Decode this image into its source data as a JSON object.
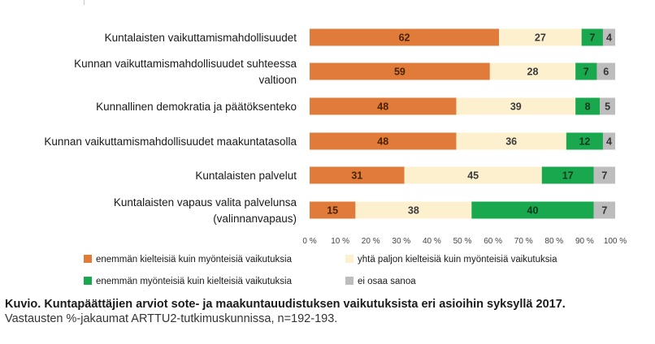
{
  "chart_data": {
    "type": "bar",
    "orientation": "horizontal",
    "stacked": "percent",
    "categories": [
      [
        "Kuntalaisten vaikuttamismahdollisuudet"
      ],
      [
        "Kunnan vaikuttamismahdollisuudet suhteessa",
        "valtioon"
      ],
      [
        "Kunnallinen demokratia ja päätöksenteko"
      ],
      [
        "Kunnan vaikuttamismahdollisuudet maakuntatasolla"
      ],
      [
        "Kuntalaisten palvelut"
      ],
      [
        "Kuntalaisten vapaus valita palvelunsa",
        "(valinnanvapaus)"
      ]
    ],
    "series": [
      {
        "name": "enemmän kielteisiä kuin myönteisiä vaikutuksia",
        "color": "#e07b39",
        "label_color": "#4a2200",
        "values": [
          62,
          59,
          48,
          48,
          31,
          15
        ]
      },
      {
        "name": "yhtä paljon kielteisiä kuin myönteisiä vaikutuksia",
        "color": "#fdf0cf",
        "label_color": "#3a3a3a",
        "values": [
          27,
          28,
          39,
          36,
          45,
          38
        ]
      },
      {
        "name": "enemmän myönteisiä kuin kielteisiä vaikutuksia",
        "color": "#1aa84f",
        "label_color": "#0d3a1c",
        "values": [
          7,
          7,
          8,
          12,
          17,
          40
        ]
      },
      {
        "name": "ei osaa sanoa",
        "color": "#bdbdbd",
        "label_color": "#333333",
        "values": [
          4,
          6,
          5,
          4,
          7,
          7
        ]
      }
    ],
    "x_ticks": [
      "0 %",
      "10 %",
      "20 %",
      "30 %",
      "40 %",
      "50 %",
      "60 %",
      "70 %",
      "80 %",
      "90 %",
      "100 %"
    ],
    "xlim": [
      0,
      100
    ],
    "grid": false,
    "legend_position": "bottom"
  },
  "caption": {
    "title": "Kuvio. Kuntapäättäjien arviot sote- ja maakuntauudistuksen vaikutuksista eri asioihin syksyllä 2017.",
    "subtitle": "Vastausten %-jakaumat ARTTU2-tutkimuskunnissa, n=192-193."
  }
}
